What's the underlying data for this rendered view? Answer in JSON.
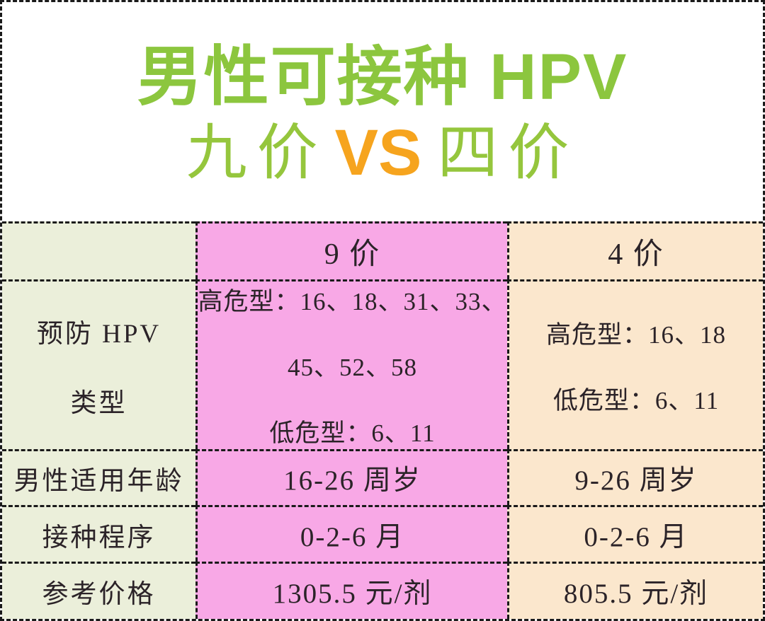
{
  "title": {
    "line1": "男性可接种 HPV",
    "line2_left": "九价",
    "line2_vs": "VS",
    "line2_right": "四价"
  },
  "colors": {
    "title_green": "#8cc63e",
    "subtitle_green": "#95c63d",
    "vs_orange": "#f6a41e",
    "label_col_bg": "#ebefda",
    "nine_col_bg": "#f8a8e6",
    "four_col_bg": "#fbe7cd",
    "text_dark": "#2b2328",
    "border_black": "#1a1a1a"
  },
  "table": {
    "header": {
      "label": "",
      "nine": "9 价",
      "four": "4 价"
    },
    "type_row": {
      "label_lines": [
        "预防 HPV",
        "类型"
      ],
      "nine_lines": [
        "高危型：16、18、31、33、",
        "45、52、58",
        "低危型：6、11"
      ],
      "four_lines": [
        "高危型：16、18",
        "低危型：6、11"
      ]
    },
    "age_row": {
      "label": "男性适用年龄",
      "nine": "16-26 周岁",
      "four": "9-26 周岁"
    },
    "schedule_row": {
      "label": "接种程序",
      "nine": "0-2-6 月",
      "four": "0-2-6 月"
    },
    "price_row": {
      "label": "参考价格",
      "nine": "1305.5 元/剂",
      "four": "805.5 元/剂"
    }
  },
  "chart_data": {
    "type": "table",
    "title": "男性可接种 HPV 九价 VS 四价",
    "columns": [
      "",
      "9 价",
      "4 价"
    ],
    "rows": [
      [
        "预防 HPV 类型",
        "高危型：16、18、31、33、45、52、58 低危型：6、11",
        "高危型：16、18 低危型：6、11"
      ],
      [
        "男性适用年龄",
        "16-26 周岁",
        "9-26 周岁"
      ],
      [
        "接种程序",
        "0-2-6 月",
        "0-2-6 月"
      ],
      [
        "参考价格",
        "1305.5 元/剂",
        "805.5 元/剂"
      ]
    ],
    "layout": {
      "grid": "dashed black borders",
      "column_colors": [
        "#ebefda",
        "#f8a8e6",
        "#fbe7cd"
      ]
    }
  }
}
